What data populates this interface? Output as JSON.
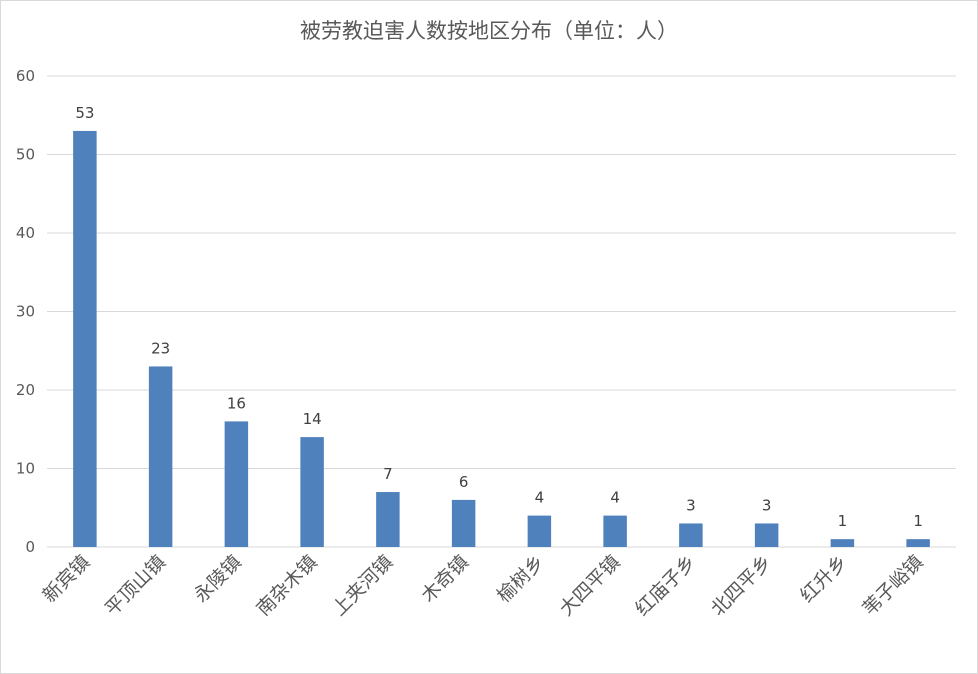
{
  "chart_data": {
    "type": "bar",
    "title": "被劳教迫害人数按地区分布（单位：人）",
    "categories": [
      "新宾镇",
      "平顶山镇",
      "永陵镇",
      "南杂木镇",
      "上夹河镇",
      "木奇镇",
      "榆树乡",
      "大四平镇",
      "红庙子乡",
      "北四平乡",
      "红升乡",
      "苇子峪镇"
    ],
    "values": [
      53,
      23,
      16,
      14,
      7,
      6,
      4,
      4,
      3,
      3,
      1,
      1
    ],
    "ylim": [
      0,
      60
    ],
    "yticks": [
      0,
      10,
      20,
      30,
      40,
      50,
      60
    ],
    "xlabel": "",
    "ylabel": "",
    "grid": true,
    "legend": "none",
    "bar_color": "#4f81bd",
    "grid_color": "#d9d9d9"
  }
}
